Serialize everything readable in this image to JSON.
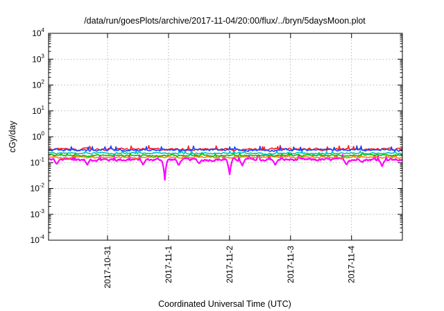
{
  "chart_data": {
    "type": "line",
    "title": "/data/run/goesPlots/archive/2017-11-04/20:00/flux/../bryn/5daysMoon.plot",
    "xlabel": "Coordinated Universal Time (UTC)",
    "ylabel": "cGy/day",
    "yscale": "log",
    "ylim": [
      0.0001,
      10000
    ],
    "xlim": [
      "2017-10-30T00:48",
      "2017-11-04T20:00"
    ],
    "grid": true,
    "y_ticks": [
      {
        "base": "10",
        "exp": "-4"
      },
      {
        "base": "10",
        "exp": "-3"
      },
      {
        "base": "10",
        "exp": "-2"
      },
      {
        "base": "10",
        "exp": "-1"
      },
      {
        "base": "10",
        "exp": "0"
      },
      {
        "base": "10",
        "exp": "1"
      },
      {
        "base": "10",
        "exp": "2"
      },
      {
        "base": "10",
        "exp": "3"
      },
      {
        "base": "10",
        "exp": "4"
      }
    ],
    "x_ticks": [
      "2017-10-31",
      "2017-11-1",
      "2017-11-2",
      "2017-11-3",
      "2017-11-4"
    ],
    "series": [
      {
        "color": "#ff00ff",
        "baseline": 0.13,
        "noise": 0.06,
        "dips": [
          {
            "x": "2017-10-30T04:00",
            "y": 0.085
          },
          {
            "x": "2017-10-30T16:00",
            "y": 0.08
          },
          {
            "x": "2017-10-31T14:00",
            "y": 0.08
          },
          {
            "x": "2017-10-31T22:30",
            "y": 0.018
          },
          {
            "x": "2017-11-01T04:00",
            "y": 0.075
          },
          {
            "x": "2017-11-01T12:00",
            "y": 0.09
          },
          {
            "x": "2017-11-02T00:00",
            "y": 0.03
          },
          {
            "x": "2017-11-02T05:00",
            "y": 0.075
          },
          {
            "x": "2017-11-02T18:00",
            "y": 0.08
          },
          {
            "x": "2017-11-03T22:00",
            "y": 0.08
          },
          {
            "x": "2017-11-04T12:00",
            "y": 0.07
          }
        ]
      },
      {
        "color": "#ff8000",
        "baseline": 0.16,
        "noise": 0.04,
        "dips": []
      },
      {
        "color": "#00c000",
        "baseline": 0.19,
        "noise": 0.05,
        "dips": []
      },
      {
        "color": "#00c0c0",
        "baseline": 0.23,
        "noise": 0.06,
        "dips": []
      },
      {
        "color": "#ff2020",
        "baseline": 0.33,
        "noise": 0.12,
        "dips": []
      },
      {
        "color": "#2040ff",
        "baseline": 0.31,
        "noise": 0.12,
        "dips": []
      }
    ]
  }
}
